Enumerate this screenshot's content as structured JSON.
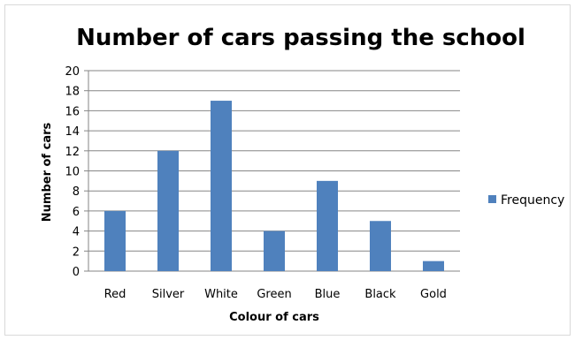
{
  "chart_data": {
    "type": "bar",
    "title": "Number of cars passing the school",
    "xlabel": "Colour of cars",
    "ylabel": "Number of cars",
    "categories": [
      "Red",
      "Silver",
      "White",
      "Green",
      "Blue",
      "Black",
      "Gold"
    ],
    "series": [
      {
        "name": "Frequency",
        "values": [
          6,
          12,
          17,
          4,
          9,
          5,
          1
        ],
        "color": "#4f81bd"
      }
    ],
    "ylim": [
      0,
      20
    ],
    "yticks": [
      "0",
      "2",
      "4",
      "6",
      "8",
      "10",
      "12",
      "14",
      "16",
      "18",
      "20"
    ],
    "grid": true,
    "legend_position": "right"
  }
}
